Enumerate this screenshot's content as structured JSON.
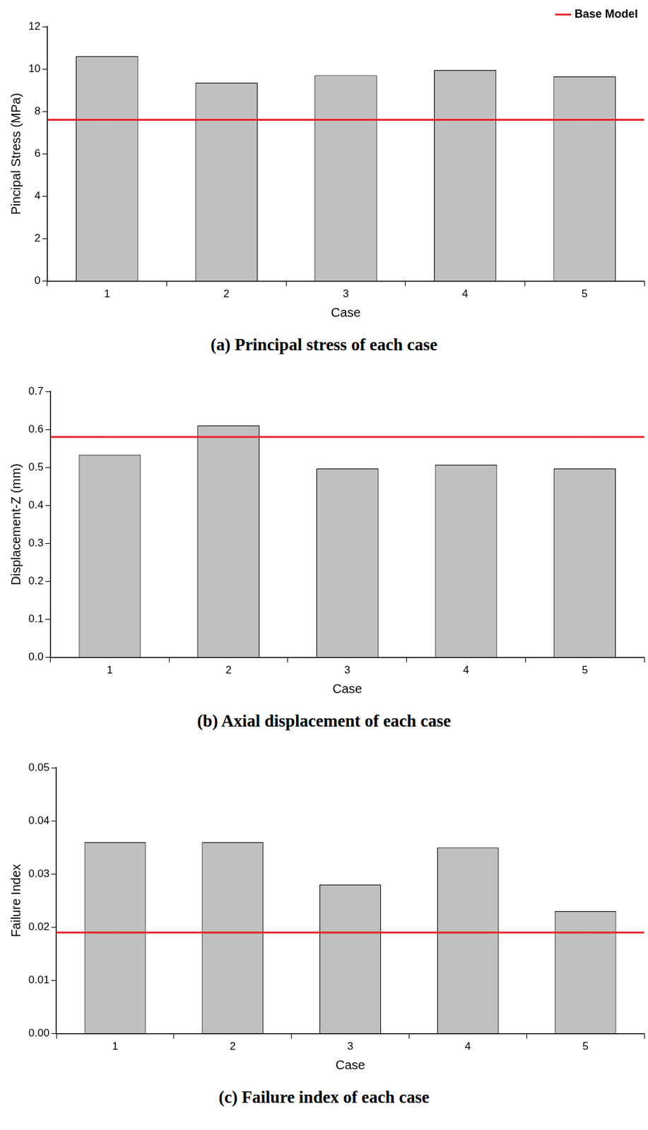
{
  "chart_data": [
    {
      "type": "bar",
      "title": "(a) Principal stress of each case",
      "x_label": "Case",
      "y_label": "Pincipal Stress (MPa)",
      "categories": [
        "1",
        "2",
        "3",
        "4",
        "5"
      ],
      "series": [
        {
          "type": "bar",
          "color": "#c0c0c0",
          "values": [
            10.6,
            9.35,
            9.7,
            9.95,
            9.65
          ]
        },
        {
          "name": "Base Model",
          "type": "line",
          "color": "#e8252a",
          "values": [
            7.6,
            7.6,
            7.6,
            7.6,
            7.6
          ]
        }
      ],
      "ylim": [
        0,
        12
      ],
      "yticks": [
        0,
        2,
        4,
        6,
        8,
        10,
        12
      ],
      "grid": false,
      "legend": "top right"
    },
    {
      "type": "bar",
      "title": "(b) Axial displacement of each case",
      "x_label": "Case",
      "y_label": "Displacement-Z (mm)",
      "categories": [
        "1",
        "2",
        "3",
        "4",
        "5"
      ],
      "series": [
        {
          "type": "bar",
          "color": "#c0c0c0",
          "values": [
            0.533,
            0.61,
            0.497,
            0.507,
            0.497
          ]
        },
        {
          "type": "line",
          "color": "#e8252a",
          "values": [
            0.58,
            0.58,
            0.58,
            0.58,
            0.58
          ]
        }
      ],
      "ylim": [
        0,
        0.7
      ],
      "yticks": [
        {
          "value": 0,
          "label": "0.0"
        },
        0.1,
        0.2,
        0.3,
        0.4,
        0.5,
        0.6,
        0.7
      ],
      "grid": false
    },
    {
      "type": "bar",
      "title": "(c) Failure index of each case",
      "x_label": "Case",
      "y_label": "Failure Index",
      "categories": [
        "1",
        "2",
        "3",
        "4",
        "5"
      ],
      "series": [
        {
          "type": "bar",
          "color": "#c0c0c0",
          "values": [
            0.036,
            0.036,
            0.028,
            0.035,
            0.023
          ]
        },
        {
          "type": "line",
          "color": "#e8252a",
          "values": [
            0.019,
            0.019,
            0.019,
            0.019,
            0.019
          ]
        }
      ],
      "ylim": [
        0,
        0.05
      ],
      "yticks": [
        {
          "value": 0,
          "label": "0.00"
        },
        0.01,
        0.02,
        0.03,
        0.04,
        0.05
      ],
      "grid": false
    }
  ]
}
